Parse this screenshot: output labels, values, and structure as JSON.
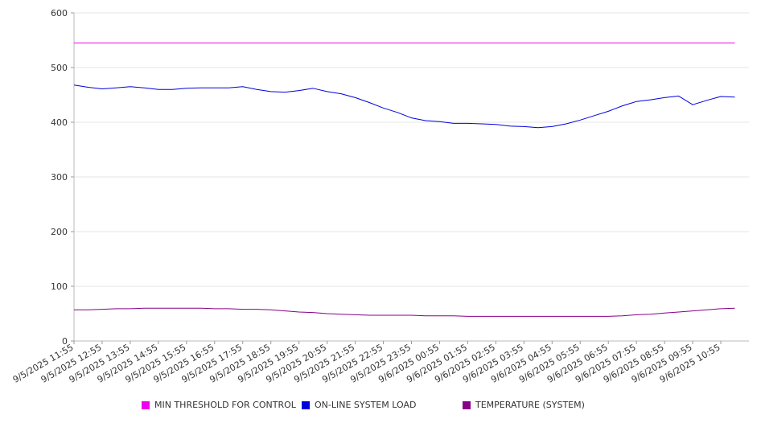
{
  "chart_data": {
    "type": "line",
    "title": "",
    "xlabel": "",
    "ylabel": "",
    "ylim": [
      0,
      600
    ],
    "y_ticks": [
      0,
      100,
      200,
      300,
      400,
      500,
      600
    ],
    "grid": true,
    "legend_position": "bottom",
    "x_tick_labels": [
      "9/5/2025 11:55",
      "9/5/2025 12:55",
      "9/5/2025 13:55",
      "9/5/2025 14:55",
      "9/5/2025 15:55",
      "9/5/2025 16:55",
      "9/5/2025 17:55",
      "9/5/2025 18:55",
      "9/5/2025 19:55",
      "9/5/2025 20:55",
      "9/5/2025 21:55",
      "9/5/2025 22:55",
      "9/5/2025 23:55",
      "9/6/2025 00:55",
      "9/6/2025 01:55",
      "9/6/2025 02:55",
      "9/6/2025 03:55",
      "9/6/2025 04:55",
      "9/6/2025 05:55",
      "9/6/2025 06:55",
      "9/6/2025 07:55",
      "9/6/2025 08:55",
      "9/6/2025 09:55",
      "9/6/2025 10:55"
    ],
    "x": [
      "9/5/2025 11:55",
      "9/5/2025 12:25",
      "9/5/2025 12:55",
      "9/5/2025 13:25",
      "9/5/2025 13:55",
      "9/5/2025 14:25",
      "9/5/2025 14:55",
      "9/5/2025 15:25",
      "9/5/2025 15:55",
      "9/5/2025 16:25",
      "9/5/2025 16:55",
      "9/5/2025 17:25",
      "9/5/2025 17:55",
      "9/5/2025 18:25",
      "9/5/2025 18:55",
      "9/5/2025 19:25",
      "9/5/2025 19:55",
      "9/5/2025 20:25",
      "9/5/2025 20:55",
      "9/5/2025 21:25",
      "9/5/2025 21:55",
      "9/5/2025 22:25",
      "9/5/2025 22:55",
      "9/5/2025 23:25",
      "9/5/2025 23:55",
      "9/6/2025 00:25",
      "9/6/2025 00:55",
      "9/6/2025 01:25",
      "9/6/2025 01:55",
      "9/6/2025 02:25",
      "9/6/2025 02:55",
      "9/6/2025 03:25",
      "9/6/2025 03:55",
      "9/6/2025 04:25",
      "9/6/2025 04:55",
      "9/6/2025 05:25",
      "9/6/2025 05:55",
      "9/6/2025 06:25",
      "9/6/2025 06:55",
      "9/6/2025 07:25",
      "9/6/2025 07:55",
      "9/6/2025 08:25",
      "9/6/2025 08:55",
      "9/6/2025 09:25",
      "9/6/2025 09:55",
      "9/6/2025 10:25",
      "9/6/2025 10:55",
      "9/6/2025 11:25"
    ],
    "series": [
      {
        "name": "MIN THRESHOLD FOR CONTROL",
        "color": "#ee00ee",
        "values": [
          545,
          545,
          545,
          545,
          545,
          545,
          545,
          545,
          545,
          545,
          545,
          545,
          545,
          545,
          545,
          545,
          545,
          545,
          545,
          545,
          545,
          545,
          545,
          545,
          545,
          545,
          545,
          545,
          545,
          545,
          545,
          545,
          545,
          545,
          545,
          545,
          545,
          545,
          545,
          545,
          545,
          545,
          545,
          545,
          545,
          545,
          545,
          545
        ]
      },
      {
        "name": "ON-LINE SYSTEM LOAD",
        "color": "#0000dd",
        "values": [
          468,
          464,
          461,
          463,
          465,
          463,
          460,
          460,
          462,
          463,
          463,
          463,
          465,
          460,
          456,
          455,
          458,
          462,
          456,
          452,
          445,
          436,
          426,
          418,
          408,
          403,
          401,
          398,
          398,
          397,
          396,
          393,
          392,
          390,
          392,
          397,
          404,
          412,
          420,
          430,
          438,
          441,
          445,
          448,
          432,
          440,
          447,
          446
        ]
      },
      {
        "name": "TEMPERATURE (SYSTEM)",
        "color": "#880088",
        "values": [
          57,
          57,
          58,
          59,
          59,
          60,
          60,
          60,
          60,
          60,
          59,
          59,
          58,
          58,
          57,
          55,
          53,
          52,
          50,
          49,
          48,
          47,
          47,
          47,
          47,
          46,
          46,
          46,
          45,
          45,
          45,
          45,
          45,
          45,
          45,
          45,
          45,
          45,
          45,
          46,
          48,
          49,
          51,
          53,
          55,
          57,
          59,
          60
        ]
      }
    ]
  }
}
